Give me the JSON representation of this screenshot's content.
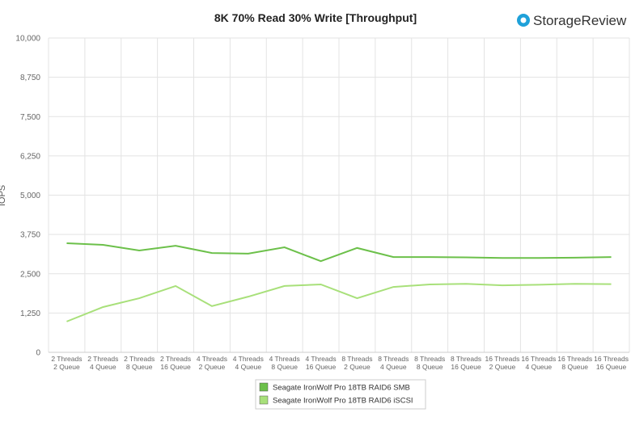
{
  "chart_data": {
    "type": "line",
    "title": "8K 70% Read 30% Write [Throughput]",
    "brand": "StorageReview",
    "y_label": "IOPS",
    "categories": [
      "2 Threads\n2 Queue",
      "2 Threads\n4 Queue",
      "2 Threads\n8 Queue",
      "2 Threads\n16 Queue",
      "4 Threads\n2 Queue",
      "4 Threads\n4 Queue",
      "4 Threads\n8 Queue",
      "4 Threads\n16 Queue",
      "8 Threads\n2 Queue",
      "8 Threads\n4 Queue",
      "8 Threads\n8 Queue",
      "8 Threads\n16 Queue",
      "16 Threads\n2 Queue",
      "16 Threads\n4 Queue",
      "16 Threads\n8 Queue",
      "16 Threads\n16 Queue"
    ],
    "series": [
      {
        "name": "Seagate IronWolf Pro 18TB RAID6 SMB",
        "color": "#6cc04a",
        "values": [
          3470,
          3420,
          3240,
          3390,
          3160,
          3140,
          3340,
          2900,
          3320,
          3030,
          3030,
          3020,
          3000,
          3000,
          3010,
          3030
        ]
      },
      {
        "name": "Seagate IronWolf Pro 18TB RAID6 iSCSI",
        "color": "#a8e07a",
        "values": [
          980,
          1440,
          1720,
          2110,
          1470,
          1770,
          2110,
          2160,
          1720,
          2080,
          2160,
          2180,
          2130,
          2150,
          2180,
          2170
        ]
      }
    ],
    "ylim": [
      0,
      10000
    ],
    "yticks": [
      0,
      {
        "value": 1250,
        "label": "1,250"
      },
      {
        "value": 2500,
        "label": "2,500"
      },
      {
        "value": 3750,
        "label": "3,750"
      },
      {
        "value": 5000,
        "label": "5,000"
      },
      {
        "value": 6250,
        "label": "6,250"
      },
      {
        "value": 7500,
        "label": "7,500"
      },
      {
        "value": 8750,
        "label": "8,750"
      },
      {
        "value": 10000,
        "label": "10,000"
      }
    ],
    "grid": true
  }
}
